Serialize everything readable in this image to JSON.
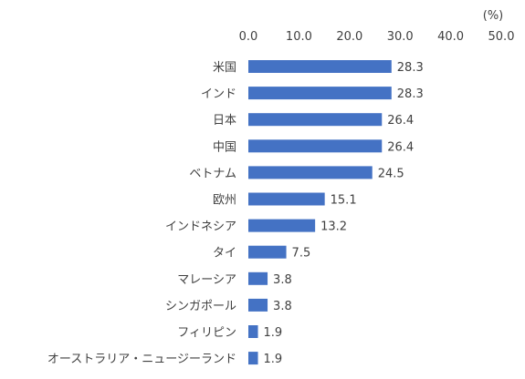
{
  "chart_data": {
    "type": "bar",
    "orientation": "horizontal",
    "unit_label": "(%)",
    "categories": [
      "米国",
      "インド",
      "日本",
      "中国",
      "ベトナム",
      "欧州",
      "インドネシア",
      "タイ",
      "マレーシア",
      "シンガポール",
      "フィリピン",
      "オーストラリア・ニュージーランド"
    ],
    "values": [
      28.3,
      28.3,
      26.4,
      26.4,
      24.5,
      15.1,
      13.2,
      7.5,
      3.8,
      3.8,
      1.9,
      1.9
    ],
    "xlim": [
      0,
      50
    ],
    "ticks": [
      "0.0",
      "10.0",
      "20.0",
      "30.0",
      "40.0",
      "50.0"
    ],
    "axis_position": "top",
    "grid": false,
    "bar_color": "#4472c4"
  }
}
